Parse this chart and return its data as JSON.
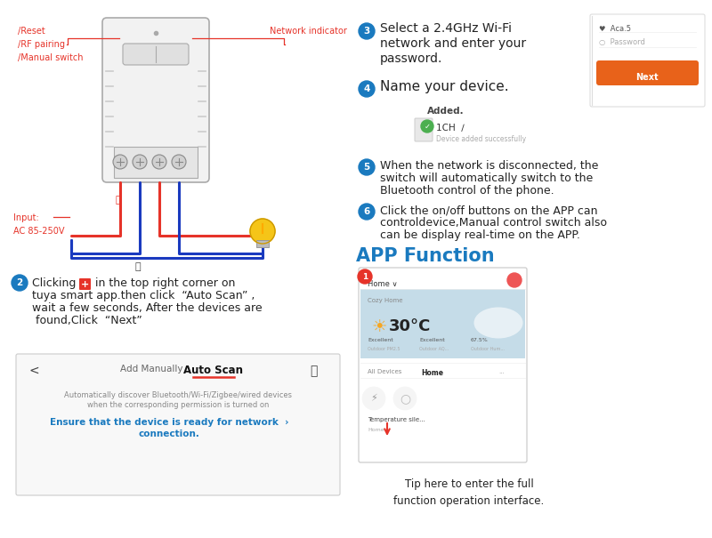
{
  "bg_color": "#ffffff",
  "step2_text_lines": [
    "in the top right corner on",
    "tuya smart app.then click  “Auto Scan” ,",
    "wait a few seconds, After the devices are",
    " found,Click  “Next”"
  ],
  "step3_lines": [
    "Select a 2.4GHz Wi-Fi",
    "network and enter your",
    "password."
  ],
  "step4_text": "Name your device.",
  "step5_lines": [
    "When the network is disconnected, the",
    "switch will automatically switch to the",
    "Bluetooth control of the phone."
  ],
  "step6_lines": [
    "Click the on/off buttons on the APP can",
    "controldevice,Manual control switch also",
    "can be display real-time on the APP."
  ],
  "app_function_title": "APP Function",
  "tip_text": "Tip here to enter the full\nfunction operation interface.",
  "label_reset": "/Reset\n/RF pairing\n/Manual switch",
  "label_network": "Network indicator",
  "label_input": "Input:\nAC 85-250V",
  "circle_color": "#1a7abf",
  "red_color": "#e63329",
  "orange_color": "#e8621a",
  "text_dark": "#222222",
  "text_gray": "#888888",
  "blue_link": "#1a7abf",
  "scan_box_bg": "#f0f0f0",
  "wire_red": "#e63329",
  "wire_blue": "#1a3abf"
}
